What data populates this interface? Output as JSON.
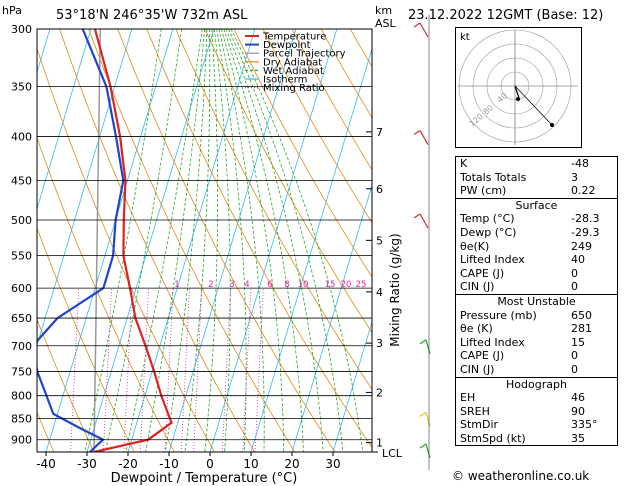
{
  "header": {
    "location": "53°18'N  246°35'W  732m  ASL",
    "datetime": "23.12.2022  12GMT  (Base: 12)",
    "hpa_unit": "hPa",
    "km_unit": "km",
    "asl_unit": "ASL"
  },
  "chart_data": {
    "type": "skew-t",
    "xlabel": "Dewpoint / Temperature (°C)",
    "ylabel_right": "Mixing Ratio (g/kg)",
    "x_ticks": [
      -40,
      -30,
      -20,
      -10,
      0,
      10,
      20,
      30
    ],
    "pressure_levels": [
      300,
      350,
      400,
      450,
      500,
      550,
      600,
      650,
      700,
      750,
      800,
      850,
      900
    ],
    "km_ticks": [
      {
        "label": "7",
        "p": 395
      },
      {
        "label": "6",
        "p": 460
      },
      {
        "label": "5",
        "p": 528
      },
      {
        "label": "4",
        "p": 606
      },
      {
        "label": "3",
        "p": 695
      },
      {
        "label": "2",
        "p": 793
      },
      {
        "label": "1",
        "p": 907
      }
    ],
    "lcl_label": "LCL",
    "mixing_ratio_labels": [
      "1",
      "2",
      "3",
      "4",
      "6",
      "8",
      "10",
      "15",
      "20",
      "25"
    ],
    "legend": [
      "Temperature",
      "Dewpoint",
      "Parcel Trajectory",
      "Dry Adiabat",
      "Wet Adiabat",
      "Isotherm",
      "Mixing Ratio"
    ],
    "temperature": [
      {
        "p": 930,
        "t": -28.3
      },
      {
        "p": 900,
        "t": -16.0
      },
      {
        "p": 860,
        "t": -11.5
      },
      {
        "p": 840,
        "t": -13.0
      },
      {
        "p": 800,
        "t": -16.0
      },
      {
        "p": 750,
        "t": -19.5
      },
      {
        "p": 700,
        "t": -23.5
      },
      {
        "p": 650,
        "t": -28.0
      },
      {
        "p": 600,
        "t": -31.5
      },
      {
        "p": 550,
        "t": -35.5
      },
      {
        "p": 500,
        "t": -38.0
      },
      {
        "p": 450,
        "t": -40.5
      },
      {
        "p": 400,
        "t": -45.0
      },
      {
        "p": 350,
        "t": -51.0
      },
      {
        "p": 300,
        "t": -59.0
      }
    ],
    "dewpoint": [
      {
        "p": 930,
        "t": -29.3
      },
      {
        "p": 900,
        "t": -27.0
      },
      {
        "p": 870,
        "t": -34.0
      },
      {
        "p": 840,
        "t": -41.0
      },
      {
        "p": 800,
        "t": -44.0
      },
      {
        "p": 750,
        "t": -48.0
      },
      {
        "p": 700,
        "t": -51.0
      },
      {
        "p": 650,
        "t": -47.0
      },
      {
        "p": 600,
        "t": -38.0
      },
      {
        "p": 550,
        "t": -38.0
      },
      {
        "p": 500,
        "t": -40.0
      },
      {
        "p": 450,
        "t": -41.0
      },
      {
        "p": 400,
        "t": -46.0
      },
      {
        "p": 350,
        "t": -52.0
      },
      {
        "p": 300,
        "t": -62.0
      }
    ]
  },
  "hodograph": {
    "label": "kt",
    "ring_labels": [
      "40",
      "80",
      "120"
    ]
  },
  "indices": {
    "rows": [
      {
        "label": "K",
        "value": "-48"
      },
      {
        "label": "Totals Totals",
        "value": "3"
      },
      {
        "label": "PW (cm)",
        "value": "0.22"
      }
    ],
    "surface": {
      "title": "Surface",
      "rows": [
        {
          "label": "Temp (°C)",
          "value": "-28.3"
        },
        {
          "label": "Dewp (°C)",
          "value": "-29.3"
        },
        {
          "label": "θe(K)",
          "value": "249"
        },
        {
          "label": "Lifted Index",
          "value": "40"
        },
        {
          "label": "CAPE (J)",
          "value": "0"
        },
        {
          "label": "CIN (J)",
          "value": "0"
        }
      ]
    },
    "most_unstable": {
      "title": "Most Unstable",
      "rows": [
        {
          "label": "Pressure (mb)",
          "value": "650"
        },
        {
          "label": "θe (K)",
          "value": "281"
        },
        {
          "label": "Lifted Index",
          "value": "15"
        },
        {
          "label": "CAPE (J)",
          "value": "0"
        },
        {
          "label": "CIN (J)",
          "value": "0"
        }
      ]
    },
    "hodograph": {
      "title": "Hodograph",
      "rows": [
        {
          "label": "EH",
          "value": "46"
        },
        {
          "label": "SREH",
          "value": "90"
        },
        {
          "label": "StmDir",
          "value": "335°"
        },
        {
          "label": "StmSpd (kt)",
          "value": "35"
        }
      ]
    }
  },
  "credit": "© weatheronline.co.uk",
  "colors": {
    "temperature": "#dd2222",
    "dewpoint": "#2244cc",
    "parcel": "#999999",
    "dry_adiabat": "#e08a1a",
    "wet_adiabat": "#22aa22",
    "isotherm": "#33bbee",
    "mixing_ratio": "#dd22aa",
    "wind": "#cc3333"
  }
}
